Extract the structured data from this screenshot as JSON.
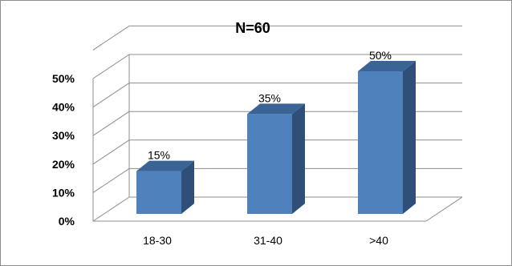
{
  "chart_data": {
    "type": "bar",
    "title": "N=60",
    "categories": [
      "18-30",
      "31-40",
      ">40"
    ],
    "values": [
      15,
      35,
      50
    ],
    "data_labels": [
      "15%",
      "35%",
      "50%"
    ],
    "yticks": [
      "0%",
      "10%",
      "20%",
      "30%",
      "40%",
      "50%"
    ],
    "ylim": [
      0,
      50
    ],
    "grid": true,
    "legend": "none",
    "colors": {
      "bar_front": "#4F81BD",
      "bar_side": "#2F4F78",
      "bar_top": "#3A6496",
      "grid": "#8c8c8c"
    }
  }
}
